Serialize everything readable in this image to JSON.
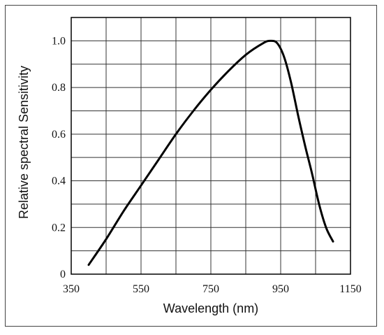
{
  "chart_data": {
    "type": "line",
    "xlabel": "Wavelength (nm)",
    "ylabel": "Relative spectral Sensitivity",
    "xlim": [
      350,
      1150
    ],
    "ylim": [
      0,
      1.1
    ],
    "x_ticks": [
      350,
      550,
      750,
      950,
      1150
    ],
    "x_tick_labels": [
      "350",
      "550",
      "750",
      "950",
      "1150"
    ],
    "y_ticks": [
      0,
      0.2,
      0.4,
      0.6,
      0.8,
      1.0
    ],
    "y_tick_labels": [
      "0",
      "0.2",
      "0.4",
      "0.6",
      "0.8",
      "1.0"
    ],
    "x_grid_step": 100,
    "y_grid_step": 0.2,
    "grid": true,
    "line_color": "#000000",
    "series": [
      {
        "x": [
          400,
          450,
          500,
          550,
          600,
          650,
          700,
          750,
          800,
          850,
          900,
          920,
          940,
          960,
          980,
          1000,
          1020,
          1040,
          1060,
          1080,
          1100
        ],
        "y": [
          0.04,
          0.15,
          0.27,
          0.38,
          0.49,
          0.6,
          0.7,
          0.79,
          0.87,
          0.94,
          0.99,
          1.0,
          0.99,
          0.93,
          0.82,
          0.68,
          0.55,
          0.43,
          0.3,
          0.2,
          0.14
        ]
      }
    ]
  }
}
